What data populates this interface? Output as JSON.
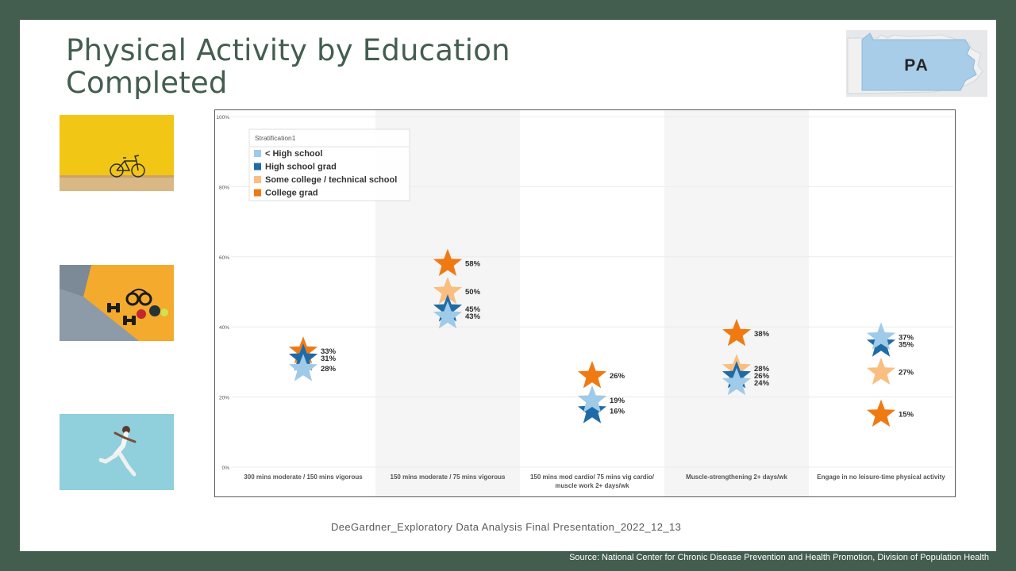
{
  "slide": {
    "title_line1": "Physical Activity by Education",
    "title_line2": "Completed",
    "state_badge": "PA",
    "footer": "DeeGardner_Exploratory Data Analysis Final Presentation_2022_12_13",
    "source": "Source: National Center for Chronic Disease Prevention and Health Promotion, Division of Population Health",
    "photos": [
      "bicycle-photo",
      "dumbbells-headphones-photo",
      "jumping-runner-photo"
    ]
  },
  "colors": {
    "frame": "#435e4f",
    "less_than_hs": "#9fcae8",
    "hs_grad": "#1f6ba8",
    "some_college": "#f9be80",
    "college_grad": "#f07a12"
  },
  "chart_data": {
    "type": "scatter",
    "marker": "star",
    "legend_title": "Stratification1",
    "ylim": [
      0,
      100
    ],
    "yticks": [
      0,
      20,
      40,
      60,
      80,
      100
    ],
    "ytick_labels": [
      "0%",
      "20%",
      "40%",
      "60%",
      "80%",
      "100%"
    ],
    "categories": [
      {
        "lines": [
          "300 mins moderate / 150 mins vigorous"
        ]
      },
      {
        "lines": [
          "150 mins moderate / 75 mins vigorous"
        ]
      },
      {
        "lines": [
          "150 mins mod cardio/  75 mins vig cardio/",
          "muscle work 2+ days/wk"
        ]
      },
      {
        "lines": [
          "Muscle-strengthening 2+ days/wk"
        ]
      },
      {
        "lines": [
          "Engage in no leisure-time physical activity"
        ]
      }
    ],
    "series": [
      {
        "name": "< High school",
        "color": "#9fcae8",
        "values": [
          28,
          43,
          19,
          24,
          37
        ],
        "labels": [
          "28%",
          "43%",
          "19%",
          "24%",
          "37%"
        ]
      },
      {
        "name": "High school grad",
        "color": "#1f6ba8",
        "values": [
          31,
          45,
          16,
          26,
          35
        ],
        "labels": [
          "31%",
          "45%",
          "16%",
          "26%",
          "35%"
        ]
      },
      {
        "name": "Some college / technical school",
        "color": "#f9be80",
        "values": [
          31,
          50,
          19,
          28,
          27
        ],
        "labels": [
          "",
          "50%",
          "",
          "28%",
          "27%"
        ]
      },
      {
        "name": "College grad",
        "color": "#f07a12",
        "values": [
          33,
          58,
          26,
          38,
          15
        ],
        "labels": [
          "33%",
          "58%",
          "26%",
          "38%",
          "15%"
        ]
      }
    ]
  }
}
